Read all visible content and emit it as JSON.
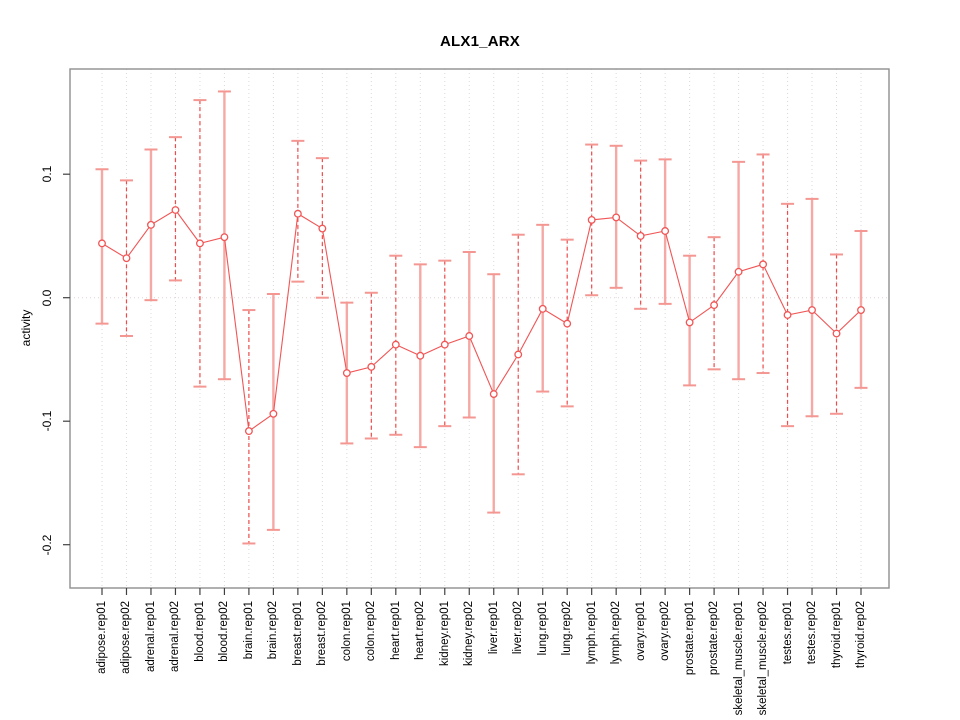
{
  "title": "ALX1_ARX",
  "chart_data": {
    "type": "scatter",
    "subtype": "points-with-error-bars",
    "title": "ALX1_ARX",
    "xlabel": "",
    "ylabel": "activity",
    "ylim": [
      -0.235,
      0.185
    ],
    "yticks": [
      0.1,
      0.0,
      -0.1,
      -0.2
    ],
    "ytick_labels": [
      "0.1",
      "0.0",
      "-0.1",
      "-0.2"
    ],
    "grid": "vertical dotted gridline per category; dotted horizontal line at y=0",
    "legend": "none",
    "categories": [
      "adipose.rep01",
      "adipose.rep02",
      "adrenal.rep01",
      "adrenal.rep02",
      "blood.rep01",
      "blood.rep02",
      "brain.rep01",
      "brain.rep02",
      "breast.rep01",
      "breast.rep02",
      "colon.rep01",
      "colon.rep02",
      "heart.rep01",
      "heart.rep02",
      "kidney.rep01",
      "kidney.rep02",
      "liver.rep01",
      "liver.rep02",
      "lung.rep01",
      "lung.rep02",
      "lymph.rep01",
      "lymph.rep02",
      "ovary.rep01",
      "ovary.rep02",
      "prostate.rep01",
      "prostate.rep02",
      "skeletal_muscle.rep01",
      "skeletal_muscle.rep02",
      "testes.rep01",
      "testes.rep02",
      "thyroid.rep01",
      "thyroid.rep02"
    ],
    "series": [
      {
        "name": "activity",
        "values": [
          0.044,
          0.032,
          0.059,
          0.071,
          0.044,
          0.049,
          -0.108,
          -0.094,
          0.068,
          0.056,
          -0.061,
          -0.056,
          -0.038,
          -0.047,
          -0.038,
          -0.031,
          -0.078,
          -0.046,
          -0.009,
          -0.021,
          0.063,
          0.065,
          0.05,
          0.054,
          -0.02,
          -0.006,
          0.021,
          0.027,
          -0.014,
          -0.01,
          -0.029,
          -0.01
        ],
        "error_upper": [
          0.104,
          0.095,
          0.12,
          0.13,
          0.16,
          0.167,
          -0.01,
          0.003,
          0.127,
          0.113,
          -0.004,
          0.004,
          0.034,
          0.027,
          0.03,
          0.037,
          0.019,
          0.051,
          0.059,
          0.047,
          0.124,
          0.123,
          0.111,
          0.112,
          0.034,
          0.049,
          0.11,
          0.116,
          0.076,
          0.08,
          0.035,
          0.054
        ],
        "error_lower": [
          -0.021,
          -0.031,
          -0.002,
          0.014,
          -0.072,
          -0.066,
          -0.199,
          -0.188,
          0.013,
          0.0,
          -0.118,
          -0.114,
          -0.111,
          -0.121,
          -0.104,
          -0.097,
          -0.174,
          -0.143,
          -0.076,
          -0.088,
          0.002,
          0.008,
          -0.009,
          -0.005,
          -0.071,
          -0.058,
          -0.066,
          -0.061,
          -0.104,
          -0.096,
          -0.094,
          -0.073
        ],
        "bar_line_styles": [
          "solid",
          "dashed",
          "solid",
          "dashed",
          "dashed",
          "solid",
          "dashed",
          "solid",
          "dashed",
          "dashed",
          "solid",
          "dashed",
          "dashed",
          "solid",
          "dashed",
          "solid",
          "solid",
          "dashed",
          "solid",
          "dashed",
          "dashed",
          "solid",
          "dashed",
          "solid",
          "solid",
          "dashed",
          "solid",
          "dashed",
          "dashed",
          "solid",
          "dashed",
          "solid"
        ]
      }
    ],
    "colors": {
      "point": "#f15555",
      "connector": "#f15555",
      "solid_error_bar": "#f6a9a4",
      "dashed_error_bar": "#ee4b4b",
      "error_cap": "#f49792",
      "gridline": "#d9d9d9",
      "zero_line": "#e0d4d4",
      "box_border": "#8f8f8f",
      "tick": "#404040",
      "text": "#000000"
    }
  }
}
